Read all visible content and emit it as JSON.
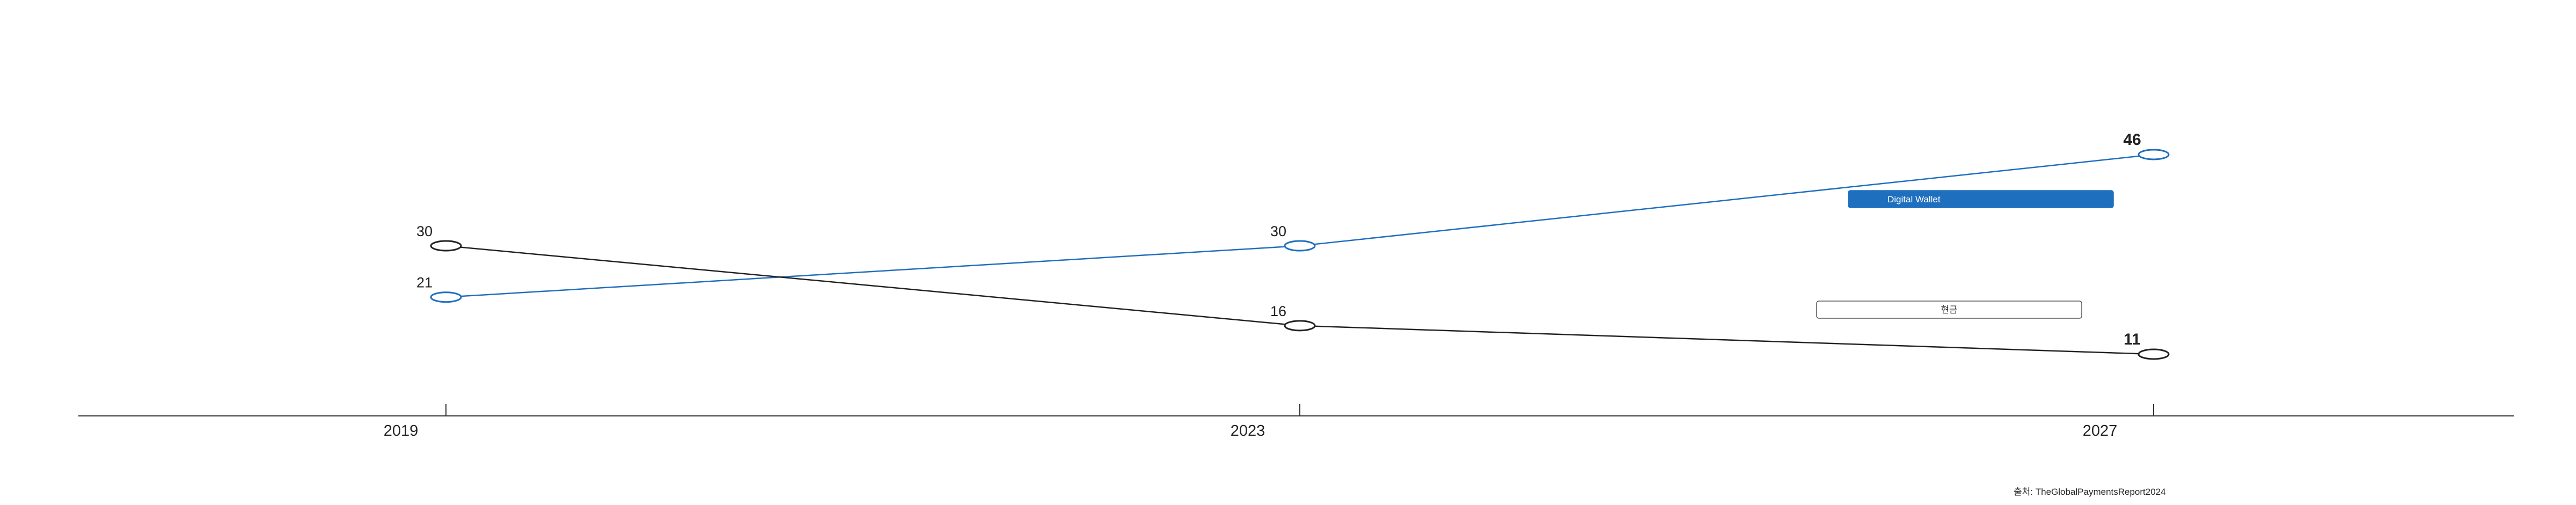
{
  "chart_data": {
    "type": "line",
    "x": [
      "2019",
      "2023",
      "2027"
    ],
    "series": [
      {
        "name": "Digital Wallet",
        "values": [
          21,
          30,
          46
        ],
        "color": "#1f6fbf",
        "legend_style": "filled"
      },
      {
        "name": "현금",
        "values": [
          30,
          16,
          11
        ],
        "color": "#222222",
        "legend_style": "outlined"
      }
    ],
    "source": "출처: TheGlobalPaymentsReport2024",
    "grid": false,
    "legend_position": "right"
  }
}
